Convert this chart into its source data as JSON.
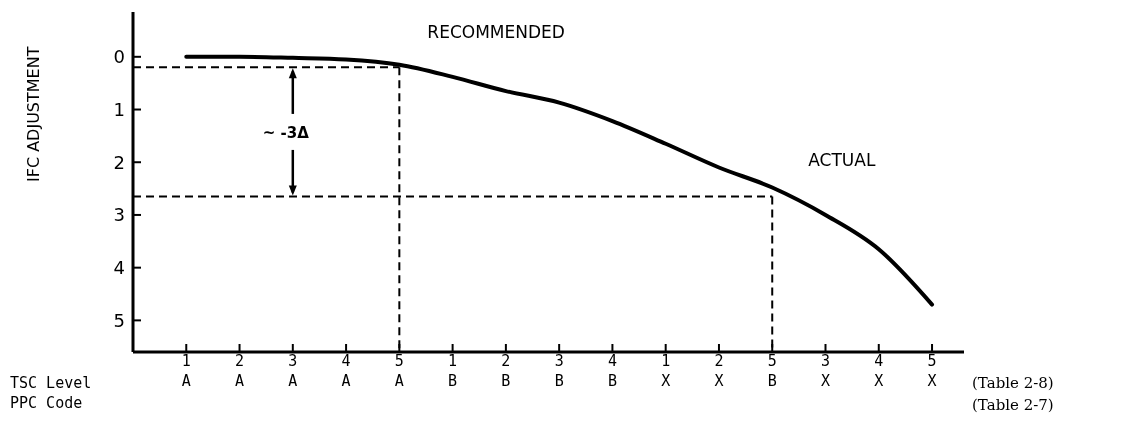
{
  "chart_data": {
    "type": "line",
    "categories": [
      "1\nA",
      "2\nA",
      "3\nA",
      "4\nA",
      "5\nA",
      "1\nB",
      "2\nB",
      "3\nB",
      "4\nB",
      "1\nX",
      "2\nX",
      "5\nB",
      "3\nX",
      "4\nX",
      "5\nX"
    ],
    "values": [
      0,
      0,
      0.02,
      0.05,
      0.15,
      0.38,
      0.65,
      0.87,
      1.22,
      1.65,
      2.1,
      2.48,
      3.0,
      3.65,
      4.7
    ],
    "color": "#000000",
    "ylabel": "IFC ADJUSTMENT",
    "ylim": [
      5.6,
      -0.85
    ],
    "yticks": [
      0,
      1,
      2,
      3,
      4,
      5
    ],
    "marker": "none",
    "line_style": "solid",
    "grid": false,
    "legend": false,
    "ref_lines": [
      {
        "axis": "y",
        "value": 0.2,
        "label": "RECOMMENDED",
        "line_style": "dashed",
        "color": "#000000"
      },
      {
        "axis": "y",
        "value": 2.65,
        "label": "ACTUAL",
        "line_style": "dashed",
        "color": "#000000"
      },
      {
        "axis": "x",
        "value": "5\nA",
        "line_style": "dashed",
        "color": "#000000"
      },
      {
        "axis": "x",
        "value": "5\nB",
        "line_style": "dashed",
        "color": "#000000"
      }
    ],
    "annotations": [
      {
        "text": "~ -3Δ",
        "x": "3\nA",
        "y": 0.2
      },
      "TSC Level",
      "PPC Code",
      "(Table 2-8)",
      "(Table 2-7)"
    ]
  }
}
